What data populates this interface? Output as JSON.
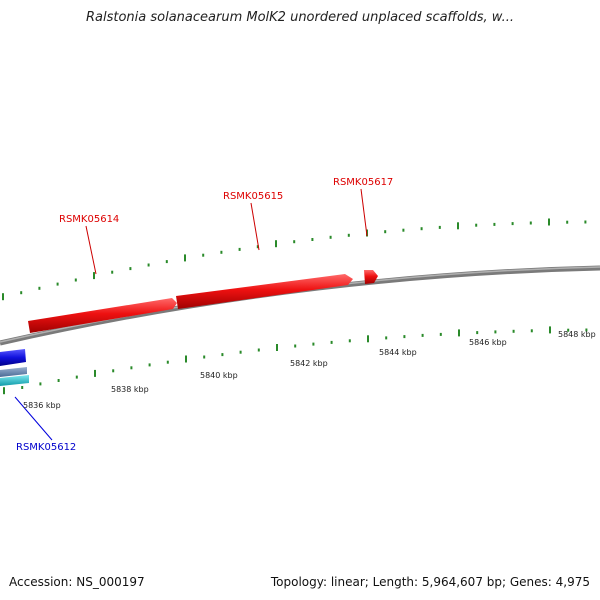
{
  "title": "Ralstonia solanacearum MolK2 unordered unplaced scaffolds, w...",
  "colors": {
    "forward": "#ee1111",
    "reverse": "#1111dd",
    "reverse_light": "#22bbcc",
    "backbone": "#888888",
    "ticks": "#2a8a2a"
  },
  "genes": [
    {
      "name": "RSMK05614",
      "strand": "forward"
    },
    {
      "name": "RSMK05615",
      "strand": "forward"
    },
    {
      "name": "RSMK05617",
      "strand": "forward"
    },
    {
      "name": "RSMK05612",
      "strand": "reverse"
    }
  ],
  "scale_labels": [
    "5836 kbp",
    "5838 kbp",
    "5840 kbp",
    "5842 kbp",
    "5844 kbp",
    "5846 kbp",
    "5848 kbp"
  ],
  "footer": {
    "accession": "Accession: NS_000197",
    "summary": "Topology: linear; Length: 5,964,607 bp; Genes: 4,975"
  }
}
